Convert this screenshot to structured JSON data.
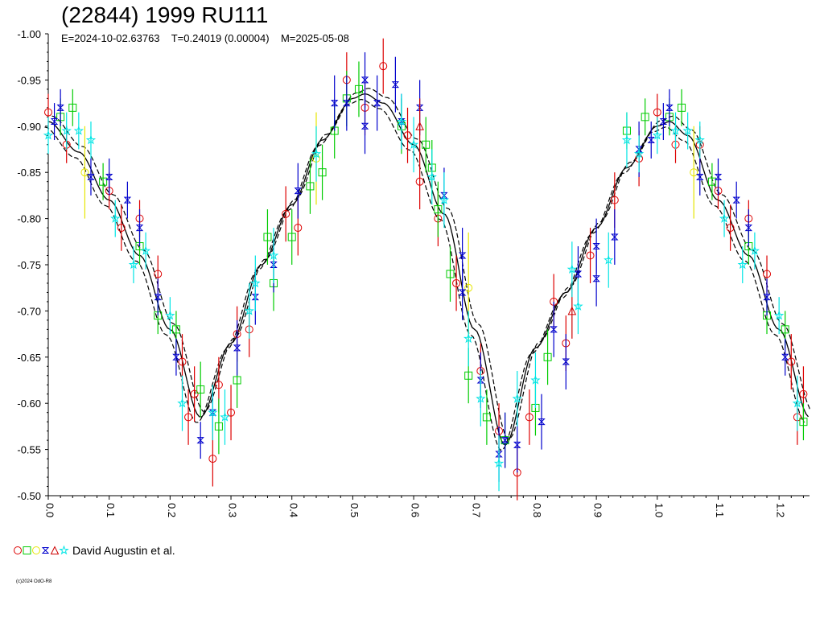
{
  "header": {
    "title": "(22844) 1999 RU111",
    "subtitle": "E=2024-10-02.63763    T=0.24019 (0.00004)    M=2025-05-08"
  },
  "legend": {
    "label": "David Augustin et al."
  },
  "footer": {
    "credit": "(c)2024 OdO-R8"
  },
  "chart_data": {
    "type": "scatter",
    "title": "(22844) 1999 RU111",
    "xlabel": "",
    "ylabel": "",
    "xlim": [
      0.0,
      1.25
    ],
    "ylim": [
      -1.0,
      -0.5
    ],
    "y_inverted": true,
    "grid": false,
    "x_ticks": [
      "0.0",
      "0.1",
      "0.2",
      "0.3",
      "0.4",
      "0.5",
      "0.6",
      "0.7",
      "0.8",
      "0.9",
      "1.0",
      "1.1",
      "1.2"
    ],
    "y_ticks": [
      "-1.00",
      "-0.95",
      "-0.90",
      "-0.85",
      "-0.80",
      "-0.75",
      "-0.70",
      "-0.65",
      "-0.60",
      "-0.55",
      "-0.50"
    ],
    "fit_curve": {
      "style": "solid black line with dashed envelope",
      "points": [
        [
          0.0,
          -0.905
        ],
        [
          0.05,
          -0.872
        ],
        [
          0.1,
          -0.82
        ],
        [
          0.15,
          -0.76
        ],
        [
          0.2,
          -0.68
        ],
        [
          0.25,
          -0.585
        ],
        [
          0.3,
          -0.665
        ],
        [
          0.35,
          -0.75
        ],
        [
          0.4,
          -0.815
        ],
        [
          0.45,
          -0.885
        ],
        [
          0.5,
          -0.93
        ],
        [
          0.52,
          -0.935
        ],
        [
          0.55,
          -0.925
        ],
        [
          0.6,
          -0.88
        ],
        [
          0.65,
          -0.805
        ],
        [
          0.7,
          -0.68
        ],
        [
          0.75,
          -0.555
        ],
        [
          0.8,
          -0.66
        ],
        [
          0.85,
          -0.72
        ],
        [
          0.9,
          -0.79
        ],
        [
          0.95,
          -0.855
        ],
        [
          1.0,
          -0.9
        ],
        [
          1.02,
          -0.905
        ],
        [
          1.05,
          -0.89
        ],
        [
          1.1,
          -0.82
        ],
        [
          1.15,
          -0.76
        ],
        [
          1.2,
          -0.68
        ],
        [
          1.25,
          -0.585
        ]
      ]
    },
    "series": [
      {
        "marker": "circle",
        "color": "#dd0000",
        "points": [
          [
            0.0,
            -0.915,
            0.02
          ],
          [
            0.03,
            -0.88,
            0.02
          ],
          [
            0.1,
            -0.83,
            0.02
          ],
          [
            0.12,
            -0.79,
            0.025
          ],
          [
            0.15,
            -0.8,
            0.02
          ],
          [
            0.18,
            -0.74,
            0.02
          ],
          [
            0.22,
            -0.645,
            0.03
          ],
          [
            0.23,
            -0.585,
            0.03
          ],
          [
            0.24,
            -0.61,
            0.03
          ],
          [
            0.27,
            -0.54,
            0.03
          ],
          [
            0.28,
            -0.62,
            0.03
          ],
          [
            0.3,
            -0.59,
            0.03
          ],
          [
            0.31,
            -0.675,
            0.03
          ],
          [
            0.33,
            -0.68,
            0.03
          ],
          [
            0.39,
            -0.805,
            0.03
          ],
          [
            0.41,
            -0.79,
            0.03
          ],
          [
            0.49,
            -0.95,
            0.03
          ],
          [
            0.52,
            -0.92,
            0.03
          ],
          [
            0.55,
            -0.965,
            0.03
          ],
          [
            0.59,
            -0.89,
            0.03
          ],
          [
            0.61,
            -0.84,
            0.03
          ],
          [
            0.64,
            -0.8,
            0.03
          ],
          [
            0.67,
            -0.73,
            0.03
          ],
          [
            0.71,
            -0.635,
            0.03
          ],
          [
            0.74,
            -0.57,
            0.03
          ],
          [
            0.77,
            -0.525,
            0.03
          ],
          [
            0.79,
            -0.585,
            0.03
          ],
          [
            0.83,
            -0.71,
            0.03
          ],
          [
            0.85,
            -0.665,
            0.03
          ],
          [
            0.89,
            -0.76,
            0.03
          ],
          [
            0.93,
            -0.82,
            0.03
          ],
          [
            0.97,
            -0.865,
            0.03
          ],
          [
            1.0,
            -0.915,
            0.02
          ],
          [
            1.03,
            -0.88,
            0.02
          ],
          [
            1.07,
            -0.88,
            0.02
          ],
          [
            1.1,
            -0.83,
            0.02
          ],
          [
            1.12,
            -0.79,
            0.025
          ],
          [
            1.15,
            -0.8,
            0.02
          ],
          [
            1.18,
            -0.74,
            0.02
          ],
          [
            1.22,
            -0.645,
            0.03
          ],
          [
            1.23,
            -0.585,
            0.03
          ],
          [
            1.24,
            -0.61,
            0.03
          ]
        ]
      },
      {
        "marker": "square",
        "color": "#00cc00",
        "points": [
          [
            0.02,
            -0.91,
            0.02
          ],
          [
            0.04,
            -0.92,
            0.02
          ],
          [
            0.09,
            -0.84,
            0.02
          ],
          [
            0.15,
            -0.77,
            0.02
          ],
          [
            0.18,
            -0.695,
            0.02
          ],
          [
            0.21,
            -0.68,
            0.02
          ],
          [
            0.25,
            -0.615,
            0.03
          ],
          [
            0.28,
            -0.575,
            0.03
          ],
          [
            0.31,
            -0.625,
            0.03
          ],
          [
            0.36,
            -0.78,
            0.03
          ],
          [
            0.37,
            -0.73,
            0.03
          ],
          [
            0.4,
            -0.78,
            0.03
          ],
          [
            0.43,
            -0.835,
            0.03
          ],
          [
            0.45,
            -0.85,
            0.03
          ],
          [
            0.47,
            -0.895,
            0.03
          ],
          [
            0.49,
            -0.93,
            0.03
          ],
          [
            0.51,
            -0.94,
            0.03
          ],
          [
            0.58,
            -0.9,
            0.03
          ],
          [
            0.62,
            -0.88,
            0.03
          ],
          [
            0.63,
            -0.855,
            0.03
          ],
          [
            0.64,
            -0.81,
            0.03
          ],
          [
            0.66,
            -0.74,
            0.03
          ],
          [
            0.69,
            -0.63,
            0.03
          ],
          [
            0.72,
            -0.585,
            0.03
          ],
          [
            0.75,
            -0.56,
            0.03
          ],
          [
            0.8,
            -0.595,
            0.03
          ],
          [
            0.82,
            -0.65,
            0.03
          ],
          [
            0.95,
            -0.895,
            0.02
          ],
          [
            0.98,
            -0.91,
            0.02
          ],
          [
            1.02,
            -0.91,
            0.02
          ],
          [
            1.04,
            -0.92,
            0.02
          ],
          [
            1.09,
            -0.84,
            0.02
          ],
          [
            1.15,
            -0.77,
            0.02
          ],
          [
            1.18,
            -0.695,
            0.02
          ],
          [
            1.21,
            -0.68,
            0.02
          ],
          [
            1.24,
            -0.58,
            0.02
          ]
        ]
      },
      {
        "marker": "circle",
        "color": "#e6e600",
        "points": [
          [
            0.06,
            -0.85,
            0.05
          ],
          [
            0.44,
            -0.865,
            0.05
          ],
          [
            0.69,
            -0.725,
            0.06
          ],
          [
            1.06,
            -0.85,
            0.05
          ]
        ]
      },
      {
        "marker": "hourglass",
        "color": "#0000cc",
        "points": [
          [
            0.01,
            -0.905,
            0.02
          ],
          [
            0.02,
            -0.92,
            0.02
          ],
          [
            0.07,
            -0.845,
            0.02
          ],
          [
            0.1,
            -0.845,
            0.02
          ],
          [
            0.13,
            -0.82,
            0.02
          ],
          [
            0.15,
            -0.79,
            0.02
          ],
          [
            0.18,
            -0.715,
            0.02
          ],
          [
            0.21,
            -0.65,
            0.02
          ],
          [
            0.25,
            -0.56,
            0.02
          ],
          [
            0.27,
            -0.59,
            0.02
          ],
          [
            0.31,
            -0.66,
            0.03
          ],
          [
            0.34,
            -0.715,
            0.03
          ],
          [
            0.37,
            -0.75,
            0.03
          ],
          [
            0.41,
            -0.83,
            0.03
          ],
          [
            0.47,
            -0.925,
            0.03
          ],
          [
            0.49,
            -0.925,
            0.03
          ],
          [
            0.52,
            -0.95,
            0.03
          ],
          [
            0.52,
            -0.9,
            0.03
          ],
          [
            0.54,
            -0.925,
            0.03
          ],
          [
            0.57,
            -0.945,
            0.03
          ],
          [
            0.58,
            -0.905,
            0.03
          ],
          [
            0.61,
            -0.92,
            0.03
          ],
          [
            0.65,
            -0.825,
            0.03
          ],
          [
            0.68,
            -0.76,
            0.03
          ],
          [
            0.68,
            -0.72,
            0.03
          ],
          [
            0.71,
            -0.625,
            0.03
          ],
          [
            0.74,
            -0.545,
            0.03
          ],
          [
            0.75,
            -0.56,
            0.03
          ],
          [
            0.77,
            -0.555,
            0.03
          ],
          [
            0.81,
            -0.58,
            0.03
          ],
          [
            0.83,
            -0.68,
            0.03
          ],
          [
            0.85,
            -0.645,
            0.03
          ],
          [
            0.87,
            -0.74,
            0.03
          ],
          [
            0.9,
            -0.735,
            0.03
          ],
          [
            0.9,
            -0.77,
            0.03
          ],
          [
            0.93,
            -0.78,
            0.03
          ],
          [
            0.97,
            -0.875,
            0.03
          ],
          [
            0.99,
            -0.885,
            0.02
          ],
          [
            1.01,
            -0.905,
            0.02
          ],
          [
            1.02,
            -0.92,
            0.02
          ],
          [
            1.07,
            -0.845,
            0.02
          ],
          [
            1.1,
            -0.845,
            0.02
          ],
          [
            1.13,
            -0.82,
            0.02
          ],
          [
            1.15,
            -0.79,
            0.02
          ],
          [
            1.18,
            -0.715,
            0.02
          ],
          [
            1.21,
            -0.65,
            0.02
          ]
        ]
      },
      {
        "marker": "triangle",
        "color": "#cc0000",
        "points": [
          [
            0.61,
            -0.9,
            0.03
          ],
          [
            0.86,
            -0.7,
            0.03
          ]
        ]
      },
      {
        "marker": "star",
        "color": "#00e5e5",
        "points": [
          [
            0.0,
            -0.89,
            0.02
          ],
          [
            0.03,
            -0.895,
            0.02
          ],
          [
            0.05,
            -0.895,
            0.02
          ],
          [
            0.07,
            -0.885,
            0.02
          ],
          [
            0.11,
            -0.8,
            0.02
          ],
          [
            0.14,
            -0.75,
            0.02
          ],
          [
            0.16,
            -0.765,
            0.02
          ],
          [
            0.2,
            -0.695,
            0.02
          ],
          [
            0.22,
            -0.6,
            0.03
          ],
          [
            0.27,
            -0.59,
            0.03
          ],
          [
            0.29,
            -0.585,
            0.03
          ],
          [
            0.33,
            -0.7,
            0.03
          ],
          [
            0.34,
            -0.73,
            0.03
          ],
          [
            0.37,
            -0.76,
            0.03
          ],
          [
            0.44,
            -0.87,
            0.03
          ],
          [
            0.58,
            -0.905,
            0.03
          ],
          [
            0.6,
            -0.88,
            0.03
          ],
          [
            0.63,
            -0.845,
            0.03
          ],
          [
            0.65,
            -0.82,
            0.03
          ],
          [
            0.69,
            -0.67,
            0.03
          ],
          [
            0.71,
            -0.605,
            0.03
          ],
          [
            0.74,
            -0.535,
            0.03
          ],
          [
            0.77,
            -0.605,
            0.03
          ],
          [
            0.8,
            -0.625,
            0.03
          ],
          [
            0.86,
            -0.745,
            0.03
          ],
          [
            0.87,
            -0.705,
            0.03
          ],
          [
            0.92,
            -0.755,
            0.03
          ],
          [
            0.95,
            -0.885,
            0.03
          ],
          [
            0.97,
            -0.87,
            0.02
          ],
          [
            1.0,
            -0.89,
            0.02
          ],
          [
            1.03,
            -0.895,
            0.02
          ],
          [
            1.05,
            -0.895,
            0.02
          ],
          [
            1.07,
            -0.885,
            0.02
          ],
          [
            1.11,
            -0.8,
            0.02
          ],
          [
            1.14,
            -0.75,
            0.02
          ],
          [
            1.16,
            -0.765,
            0.02
          ],
          [
            1.2,
            -0.695,
            0.02
          ],
          [
            1.23,
            -0.6,
            0.03
          ]
        ]
      }
    ],
    "legend_markers": [
      {
        "marker": "circle",
        "color": "#dd0000"
      },
      {
        "marker": "square",
        "color": "#00cc00"
      },
      {
        "marker": "circle",
        "color": "#e6e600"
      },
      {
        "marker": "hourglass",
        "color": "#0000cc"
      },
      {
        "marker": "triangle",
        "color": "#cc0000"
      },
      {
        "marker": "star",
        "color": "#00e5e5"
      }
    ],
    "legend_text": "David Augustin et al.",
    "legend_position": "bottom-left"
  }
}
